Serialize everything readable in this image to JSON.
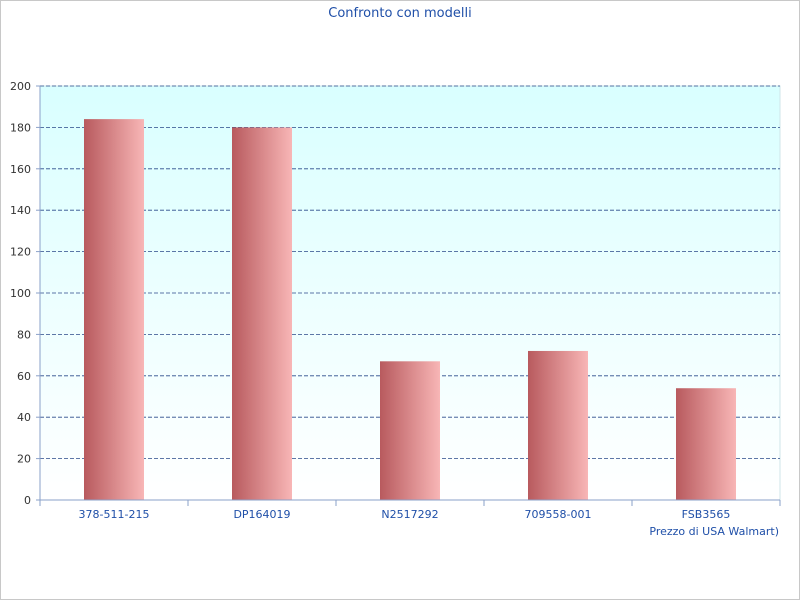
{
  "chart_data": {
    "type": "bar",
    "title": "Confronto con modelli",
    "xlabel": "Prezzo di USA Walmart)",
    "ylabel": "",
    "categories": [
      "378-511-215",
      "DP164019",
      "N2517292",
      "709558-001",
      "FSB3565"
    ],
    "series": [
      {
        "values": [
          184,
          180,
          67,
          72,
          54
        ]
      }
    ],
    "ylim": [
      0,
      200
    ],
    "yticks": [
      0,
      20,
      40,
      60,
      80,
      100,
      120,
      140,
      160,
      180,
      200
    ],
    "grid": true,
    "legend": "none",
    "colors": {
      "bar_dark": "#b85a5e",
      "bar_light": "#f8b6b6",
      "plot_bg_top": "#d9ffff",
      "plot_bg_bottom": "#ffffff",
      "grid": "#2a4a8a",
      "text": "#1f4fa8"
    }
  }
}
